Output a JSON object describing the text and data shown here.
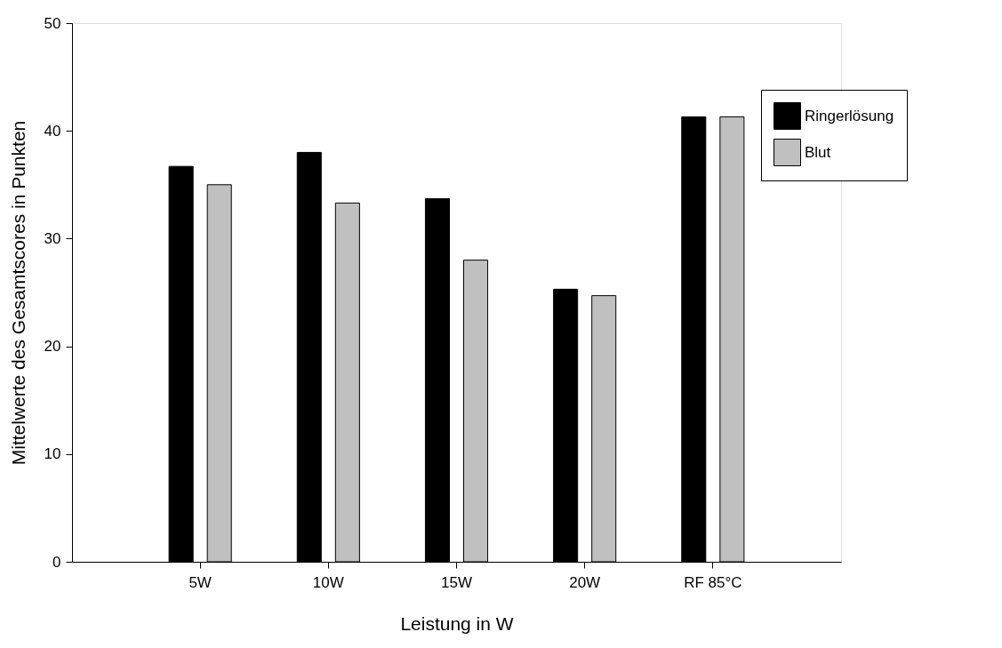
{
  "chart_data": {
    "type": "bar",
    "xlabel": "Leistung in W",
    "ylabel": "Mittelwerte des Gesamtscores in Punkten",
    "categories": [
      "5W",
      "10W",
      "15W",
      "20W",
      "RF 85°C"
    ],
    "series": [
      {
        "name": "Ringerlösung",
        "color": "#000000",
        "values": [
          36.7,
          38.0,
          33.7,
          25.3,
          41.3
        ]
      },
      {
        "name": "Blut",
        "color": "#c0c0c0",
        "values": [
          35.0,
          33.3,
          28.0,
          24.7,
          41.3
        ]
      }
    ],
    "ylim": [
      0,
      50
    ],
    "yticks": [
      0,
      10,
      20,
      30,
      40,
      50
    ],
    "grid": false,
    "legend": "top right"
  }
}
